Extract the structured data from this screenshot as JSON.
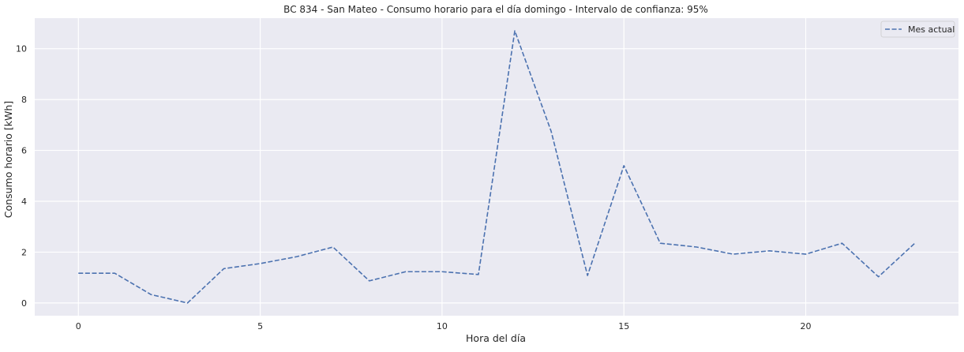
{
  "chart_data": {
    "type": "line",
    "title": "BC 834 - San Mateo - Consumo horario para el día domingo - Intervalo de confianza: 95%",
    "xlabel": "Hora del día",
    "ylabel": "Consumo horario [kWh]",
    "xlim": [
      -1.2,
      24.2
    ],
    "ylim": [
      -0.5,
      11.2
    ],
    "xticks": [
      0,
      5,
      10,
      15,
      20
    ],
    "yticks": [
      0,
      2,
      4,
      6,
      8,
      10
    ],
    "grid": true,
    "legend_position": "top-right",
    "series": [
      {
        "name": "Mes actual",
        "style": "dashed",
        "color": "#4c72b0",
        "x": [
          0,
          1,
          2,
          3,
          4,
          5,
          6,
          7,
          8,
          9,
          10,
          11,
          12,
          13,
          14,
          15,
          16,
          17,
          18,
          19,
          20,
          21,
          22,
          23
        ],
        "y": [
          1.17,
          1.17,
          0.33,
          0.0,
          1.35,
          1.55,
          1.82,
          2.2,
          0.87,
          1.23,
          1.23,
          1.12,
          10.7,
          6.75,
          1.08,
          5.4,
          2.35,
          2.2,
          1.92,
          2.05,
          1.92,
          2.35,
          1.03,
          2.35
        ]
      }
    ]
  },
  "colors": {
    "plot_background": "#eaeaf2",
    "grid": "#ffffff",
    "line": "#4c72b0"
  }
}
